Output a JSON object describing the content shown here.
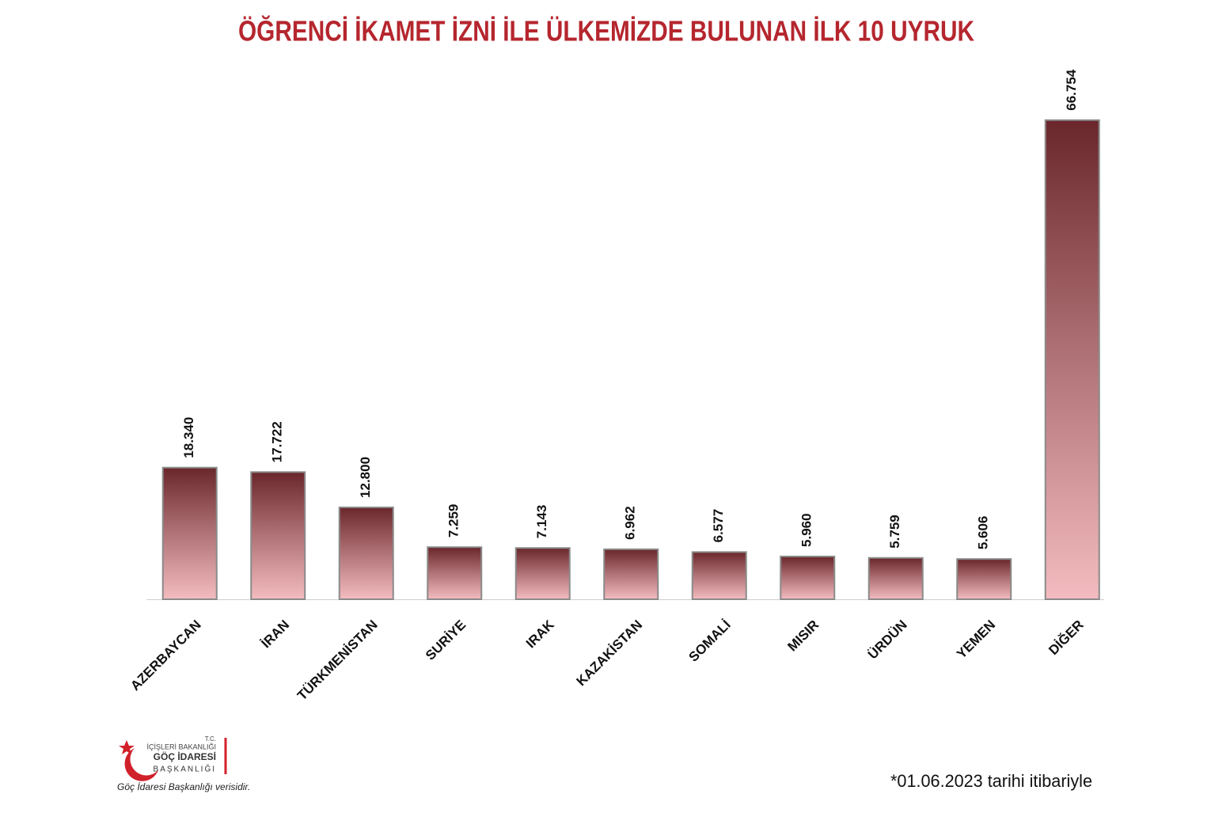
{
  "chart_data": {
    "type": "bar",
    "title": "ÖĞRENCİ İKAMET İZNİ İLE ÜLKEMİZDE BULUNAN İLK 10 UYRUK",
    "categories": [
      "AZERBAYCAN",
      "İRAN",
      "TÜRKMENİSTAN",
      "SURİYE",
      "IRAK",
      "KAZAKİSTAN",
      "SOMALİ",
      "MISIR",
      "ÜRDÜN",
      "YEMEN",
      "DİĞER"
    ],
    "values": [
      18340,
      17722,
      12800,
      7259,
      7143,
      6962,
      6577,
      5960,
      5759,
      5606,
      66754
    ],
    "value_labels": [
      "18.340",
      "17.722",
      "12.800",
      "7.259",
      "7.143",
      "6.962",
      "6.577",
      "5.960",
      "5.759",
      "5.606",
      "66.754"
    ],
    "color": "#7a3336",
    "ylim": [
      0,
      75000
    ]
  },
  "logo": {
    "line1": "T.C.",
    "line2": "İÇİŞLERİ BAKANLIĞI",
    "line3": "GÖÇ İDARESİ",
    "line4": "BAŞKANLIĞI"
  },
  "source": "Göç İdaresi Başkanlığı verisidir.",
  "footnote": "*01.06.2023 tarihi itibariyle"
}
